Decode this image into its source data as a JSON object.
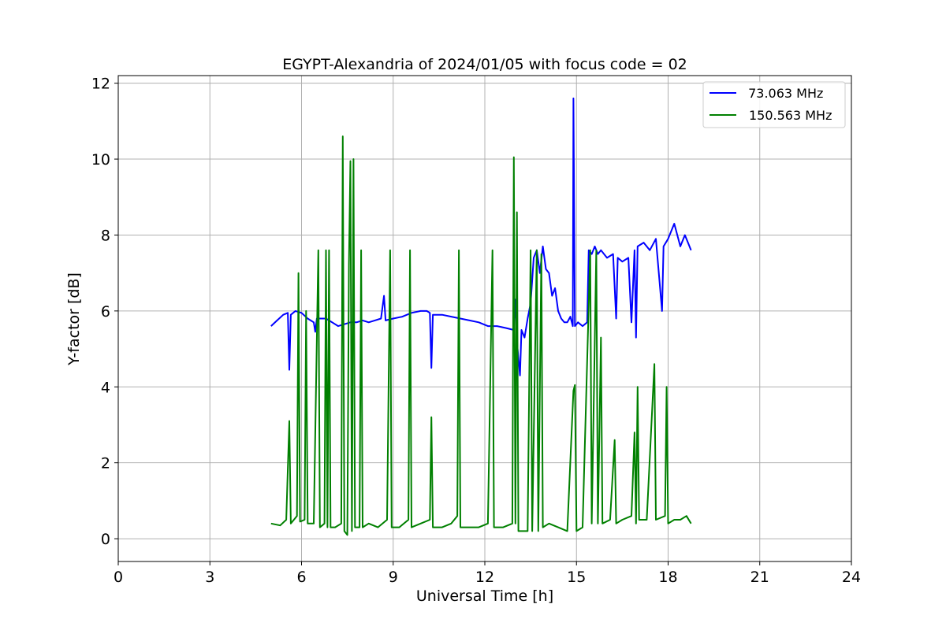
{
  "chart_data": {
    "type": "line",
    "title": "EGYPT-Alexandria of 2024/01/05 with focus code = 02",
    "xlabel": "Universal Time [h]",
    "ylabel": "Y-factor [dB]",
    "xlim": [
      0,
      24
    ],
    "ylim": [
      -0.6,
      12.2
    ],
    "xticks": [
      0,
      3,
      6,
      9,
      12,
      15,
      18,
      21,
      24
    ],
    "yticks": [
      0,
      2,
      4,
      6,
      8,
      10,
      12
    ],
    "grid": true,
    "legend_position": "top-right",
    "series": [
      {
        "name": " 73.063 MHz",
        "color": "#0000ff",
        "points": [
          [
            5.0,
            5.6
          ],
          [
            5.2,
            5.75
          ],
          [
            5.4,
            5.9
          ],
          [
            5.55,
            5.95
          ],
          [
            5.6,
            4.45
          ],
          [
            5.65,
            5.9
          ],
          [
            5.8,
            6.0
          ],
          [
            6.0,
            5.95
          ],
          [
            6.2,
            5.8
          ],
          [
            6.4,
            5.7
          ],
          [
            6.45,
            5.45
          ],
          [
            6.5,
            5.8
          ],
          [
            6.8,
            5.8
          ],
          [
            7.0,
            5.7
          ],
          [
            7.2,
            5.6
          ],
          [
            7.4,
            5.65
          ],
          [
            7.6,
            5.7
          ],
          [
            7.8,
            5.7
          ],
          [
            8.0,
            5.75
          ],
          [
            8.2,
            5.7
          ],
          [
            8.4,
            5.75
          ],
          [
            8.6,
            5.8
          ],
          [
            8.7,
            6.4
          ],
          [
            8.75,
            5.75
          ],
          [
            9.0,
            5.8
          ],
          [
            9.3,
            5.85
          ],
          [
            9.6,
            5.95
          ],
          [
            9.9,
            6.0
          ],
          [
            10.1,
            6.0
          ],
          [
            10.2,
            5.95
          ],
          [
            10.25,
            4.5
          ],
          [
            10.3,
            5.9
          ],
          [
            10.6,
            5.9
          ],
          [
            10.9,
            5.85
          ],
          [
            11.2,
            5.8
          ],
          [
            11.5,
            5.75
          ],
          [
            11.8,
            5.7
          ],
          [
            12.1,
            5.6
          ],
          [
            12.4,
            5.6
          ],
          [
            12.7,
            5.55
          ],
          [
            12.95,
            5.5
          ],
          [
            13.0,
            6.3
          ],
          [
            13.05,
            5.2
          ],
          [
            13.15,
            4.3
          ],
          [
            13.2,
            5.5
          ],
          [
            13.3,
            5.3
          ],
          [
            13.4,
            5.8
          ],
          [
            13.5,
            6.2
          ],
          [
            13.6,
            7.4
          ],
          [
            13.7,
            7.6
          ],
          [
            13.8,
            7.0
          ],
          [
            13.9,
            7.7
          ],
          [
            14.0,
            7.1
          ],
          [
            14.1,
            7.0
          ],
          [
            14.2,
            6.4
          ],
          [
            14.3,
            6.6
          ],
          [
            14.4,
            6.0
          ],
          [
            14.5,
            5.8
          ],
          [
            14.6,
            5.7
          ],
          [
            14.7,
            5.7
          ],
          [
            14.8,
            5.85
          ],
          [
            14.88,
            5.6
          ],
          [
            14.9,
            11.6
          ],
          [
            14.95,
            5.6
          ],
          [
            15.05,
            5.7
          ],
          [
            15.2,
            5.6
          ],
          [
            15.35,
            5.7
          ],
          [
            15.4,
            7.6
          ],
          [
            15.5,
            7.5
          ],
          [
            15.6,
            7.7
          ],
          [
            15.7,
            7.5
          ],
          [
            15.8,
            7.6
          ],
          [
            16.0,
            7.4
          ],
          [
            16.2,
            7.5
          ],
          [
            16.3,
            5.8
          ],
          [
            16.35,
            7.4
          ],
          [
            16.5,
            7.3
          ],
          [
            16.7,
            7.4
          ],
          [
            16.8,
            5.7
          ],
          [
            16.9,
            7.6
          ],
          [
            16.95,
            5.3
          ],
          [
            17.0,
            7.7
          ],
          [
            17.2,
            7.8
          ],
          [
            17.4,
            7.6
          ],
          [
            17.6,
            7.9
          ],
          [
            17.8,
            6.0
          ],
          [
            17.85,
            7.7
          ],
          [
            18.0,
            7.9
          ],
          [
            18.2,
            8.3
          ],
          [
            18.4,
            7.7
          ],
          [
            18.55,
            8.0
          ],
          [
            18.75,
            7.6
          ]
        ]
      },
      {
        "name": "150.563 MHz",
        "color": "#008000",
        "points": [
          [
            5.0,
            0.4
          ],
          [
            5.3,
            0.35
          ],
          [
            5.5,
            0.5
          ],
          [
            5.6,
            3.1
          ],
          [
            5.65,
            0.4
          ],
          [
            5.85,
            0.6
          ],
          [
            5.9,
            7.0
          ],
          [
            5.95,
            0.45
          ],
          [
            6.1,
            0.5
          ],
          [
            6.15,
            6.0
          ],
          [
            6.2,
            0.4
          ],
          [
            6.4,
            0.4
          ],
          [
            6.55,
            7.6
          ],
          [
            6.6,
            0.3
          ],
          [
            6.75,
            0.4
          ],
          [
            6.8,
            7.6
          ],
          [
            6.85,
            0.3
          ],
          [
            6.9,
            7.6
          ],
          [
            6.95,
            0.3
          ],
          [
            7.1,
            0.3
          ],
          [
            7.3,
            0.4
          ],
          [
            7.35,
            10.6
          ],
          [
            7.4,
            0.2
          ],
          [
            7.5,
            0.1
          ],
          [
            7.55,
            7.2
          ],
          [
            7.6,
            9.95
          ],
          [
            7.65,
            0.2
          ],
          [
            7.7,
            10.0
          ],
          [
            7.75,
            0.3
          ],
          [
            7.9,
            0.3
          ],
          [
            7.95,
            7.6
          ],
          [
            8.0,
            0.3
          ],
          [
            8.2,
            0.4
          ],
          [
            8.5,
            0.3
          ],
          [
            8.8,
            0.5
          ],
          [
            8.9,
            7.6
          ],
          [
            8.95,
            0.3
          ],
          [
            9.2,
            0.3
          ],
          [
            9.5,
            0.5
          ],
          [
            9.55,
            7.6
          ],
          [
            9.6,
            0.3
          ],
          [
            9.9,
            0.4
          ],
          [
            10.2,
            0.5
          ],
          [
            10.25,
            3.2
          ],
          [
            10.3,
            0.3
          ],
          [
            10.6,
            0.3
          ],
          [
            10.9,
            0.4
          ],
          [
            11.1,
            0.6
          ],
          [
            11.15,
            7.6
          ],
          [
            11.2,
            0.3
          ],
          [
            11.5,
            0.3
          ],
          [
            11.8,
            0.3
          ],
          [
            12.1,
            0.4
          ],
          [
            12.25,
            7.6
          ],
          [
            12.3,
            0.3
          ],
          [
            12.6,
            0.3
          ],
          [
            12.9,
            0.4
          ],
          [
            12.95,
            10.05
          ],
          [
            13.0,
            0.4
          ],
          [
            13.05,
            8.6
          ],
          [
            13.1,
            0.2
          ],
          [
            13.4,
            0.2
          ],
          [
            13.5,
            7.6
          ],
          [
            13.55,
            0.2
          ],
          [
            13.7,
            7.6
          ],
          [
            13.75,
            0.2
          ],
          [
            13.85,
            7.5
          ],
          [
            13.9,
            0.3
          ],
          [
            14.1,
            0.4
          ],
          [
            14.4,
            0.3
          ],
          [
            14.7,
            0.2
          ],
          [
            14.9,
            3.9
          ],
          [
            14.95,
            4.05
          ],
          [
            15.0,
            0.2
          ],
          [
            15.2,
            0.3
          ],
          [
            15.45,
            7.6
          ],
          [
            15.5,
            0.4
          ],
          [
            15.65,
            7.6
          ],
          [
            15.7,
            0.4
          ],
          [
            15.8,
            5.3
          ],
          [
            15.85,
            0.4
          ],
          [
            16.1,
            0.5
          ],
          [
            16.25,
            2.6
          ],
          [
            16.3,
            0.4
          ],
          [
            16.5,
            0.5
          ],
          [
            16.8,
            0.6
          ],
          [
            16.9,
            2.8
          ],
          [
            16.95,
            0.4
          ],
          [
            17.0,
            4.0
          ],
          [
            17.05,
            0.5
          ],
          [
            17.3,
            0.5
          ],
          [
            17.55,
            4.6
          ],
          [
            17.6,
            0.5
          ],
          [
            17.9,
            0.6
          ],
          [
            17.95,
            4.0
          ],
          [
            18.0,
            0.4
          ],
          [
            18.2,
            0.5
          ],
          [
            18.4,
            0.5
          ],
          [
            18.6,
            0.6
          ],
          [
            18.75,
            0.4
          ]
        ]
      }
    ]
  }
}
